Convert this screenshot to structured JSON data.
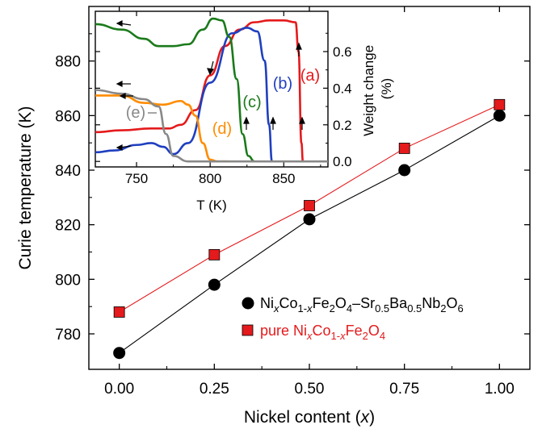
{
  "chart_data": [
    {
      "type": "line",
      "xlabel_prefix": "Nickel content (",
      "xlabel_var": "x",
      "xlabel_suffix": ")",
      "ylabel": "Curie temperature (K)",
      "xlim": [
        -0.08,
        1.08
      ],
      "ylim": [
        767,
        900
      ],
      "x_ticks": [
        "0.00",
        "0.25",
        "0.50",
        "0.75",
        "1.00"
      ],
      "x_tick_values": [
        0,
        0.25,
        0.5,
        0.75,
        1.0
      ],
      "y_ticks": [
        "780",
        "800",
        "820",
        "840",
        "860",
        "880"
      ],
      "y_tick_values": [
        780,
        800,
        820,
        840,
        860,
        880
      ],
      "legend_position": "lower-right",
      "series": [
        {
          "name": "NixCo1-xFe2O4–Sr0.5Ba0.5Nb2O6",
          "color": "#000000",
          "marker": "circle",
          "x": [
            0,
            0.25,
            0.5,
            0.75,
            1.0
          ],
          "y": [
            773,
            798,
            822,
            840,
            860
          ]
        },
        {
          "name": "pure NixCo1-xFe2O4",
          "color": "#e41a1c",
          "marker": "square",
          "x": [
            0,
            0.25,
            0.5,
            0.75,
            1.0
          ],
          "y": [
            788,
            809,
            827,
            848,
            864
          ]
        }
      ]
    },
    {
      "type": "line",
      "xlabel": "T (K)",
      "ylabel_line1": "Weight change",
      "ylabel_line2": "(%)",
      "xlim": [
        722,
        880
      ],
      "ylim": [
        -0.03,
        0.82
      ],
      "y_axis_side": "right",
      "x_ticks": [
        "750",
        "800",
        "850"
      ],
      "x_tick_values": [
        750,
        800,
        850
      ],
      "y_ticks": [
        "0.0",
        "0.2",
        "0.4",
        "0.6"
      ],
      "y_tick_values": [
        0.0,
        0.2,
        0.4,
        0.6
      ],
      "series": [
        {
          "label": "(a)",
          "color": "#e41a1c",
          "x": [
            722,
            740,
            760,
            772,
            780,
            790,
            800,
            810,
            820,
            830,
            840,
            850,
            858,
            860,
            862,
            863
          ],
          "y": [
            0.16,
            0.17,
            0.18,
            0.18,
            0.2,
            0.28,
            0.47,
            0.63,
            0.72,
            0.76,
            0.77,
            0.77,
            0.76,
            0.6,
            0.1,
            0.0
          ]
        },
        {
          "label": "(b)",
          "color": "#1f3fbf",
          "x": [
            722,
            735,
            750,
            760,
            768,
            775,
            785,
            800,
            815,
            825,
            832,
            837,
            840,
            842
          ],
          "y": [
            0.05,
            0.06,
            0.09,
            0.1,
            0.08,
            0.04,
            0.1,
            0.43,
            0.7,
            0.73,
            0.71,
            0.55,
            0.2,
            0.0
          ]
        },
        {
          "label": "(c)",
          "color": "#1a7a1a",
          "x": [
            722,
            740,
            755,
            765,
            775,
            785,
            795,
            802,
            808,
            813,
            818,
            822,
            826,
            830
          ],
          "y": [
            0.75,
            0.72,
            0.67,
            0.63,
            0.63,
            0.64,
            0.72,
            0.78,
            0.77,
            0.68,
            0.45,
            0.15,
            0.03,
            0.0
          ]
        },
        {
          "label": "(d)",
          "color": "#ff8c00",
          "x": [
            722,
            740,
            755,
            768,
            780,
            785,
            790,
            795,
            800,
            805,
            812
          ],
          "y": [
            0.36,
            0.36,
            0.32,
            0.31,
            0.33,
            0.31,
            0.25,
            0.1,
            0.01,
            0.0,
            0.0
          ]
        },
        {
          "label": "(e)",
          "color": "#888888",
          "x": [
            722,
            740,
            755,
            765,
            770,
            775,
            785,
            800,
            880
          ],
          "y": [
            0.39,
            0.37,
            0.34,
            0.3,
            0.15,
            0.03,
            0.0,
            0.0,
            0.0
          ]
        }
      ]
    }
  ]
}
